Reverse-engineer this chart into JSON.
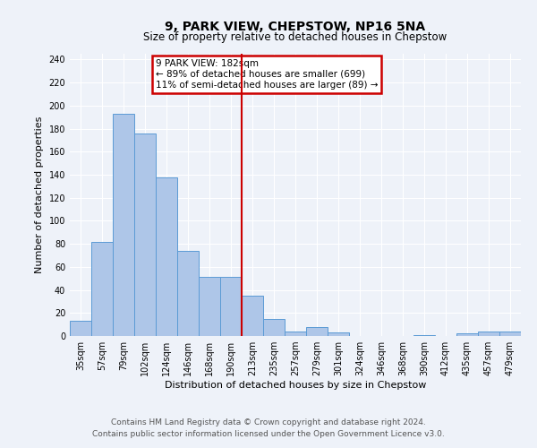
{
  "title": "9, PARK VIEW, CHEPSTOW, NP16 5NA",
  "subtitle": "Size of property relative to detached houses in Chepstow",
  "xlabel": "Distribution of detached houses by size in Chepstow",
  "ylabel": "Number of detached properties",
  "bar_labels": [
    "35sqm",
    "57sqm",
    "79sqm",
    "102sqm",
    "124sqm",
    "146sqm",
    "168sqm",
    "190sqm",
    "213sqm",
    "235sqm",
    "257sqm",
    "279sqm",
    "301sqm",
    "324sqm",
    "346sqm",
    "368sqm",
    "390sqm",
    "412sqm",
    "435sqm",
    "457sqm",
    "479sqm"
  ],
  "bar_values": [
    13,
    82,
    193,
    176,
    138,
    74,
    51,
    51,
    35,
    15,
    4,
    8,
    3,
    0,
    0,
    0,
    1,
    0,
    2,
    4,
    4
  ],
  "bar_color": "#aec6e8",
  "bar_edge_color": "#5b9bd5",
  "ylim": [
    0,
    245
  ],
  "yticks": [
    0,
    20,
    40,
    60,
    80,
    100,
    120,
    140,
    160,
    180,
    200,
    220,
    240
  ],
  "vline_x": 7.5,
  "vline_color": "#cc0000",
  "annotation_title": "9 PARK VIEW: 182sqm",
  "annotation_line1": "← 89% of detached houses are smaller (699)",
  "annotation_line2": "11% of semi-detached houses are larger (89) →",
  "annotation_box_color": "#cc0000",
  "footer_line1": "Contains HM Land Registry data © Crown copyright and database right 2024.",
  "footer_line2": "Contains public sector information licensed under the Open Government Licence v3.0.",
  "background_color": "#eef2f9",
  "grid_color": "#ffffff",
  "title_fontsize": 10,
  "subtitle_fontsize": 8.5,
  "axis_label_fontsize": 8,
  "tick_fontsize": 7,
  "footer_fontsize": 6.5,
  "annotation_fontsize": 7.5
}
